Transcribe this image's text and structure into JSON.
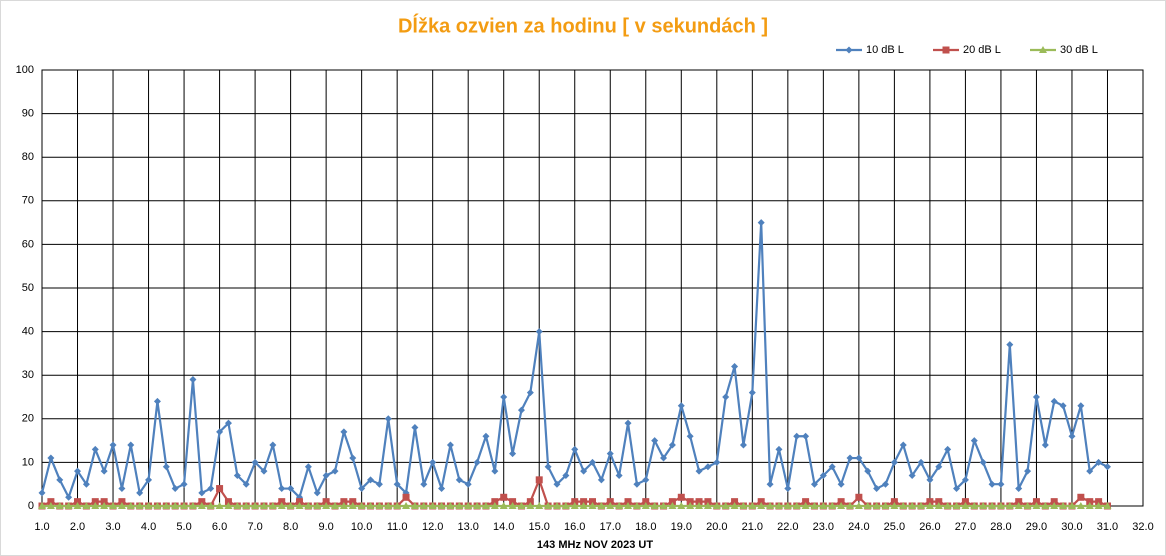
{
  "chart_data": {
    "type": "line",
    "title": "Dĺžka ozvien za hodinu [ v sekundách ]",
    "x_label": "143 MHz  NOV  2023  UT",
    "xlim": [
      1,
      32
    ],
    "ylim": [
      0,
      100
    ],
    "yticks": [
      0,
      10,
      20,
      30,
      40,
      50,
      60,
      70,
      80,
      90,
      100
    ],
    "xticks": [
      {
        "value": 1,
        "label": "1.0"
      },
      {
        "value": 2,
        "label": "2.0"
      },
      {
        "value": 3,
        "label": "3.0"
      },
      {
        "value": 4,
        "label": "4.0"
      },
      {
        "value": 5,
        "label": "5.0"
      },
      {
        "value": 6,
        "label": "6.0"
      },
      {
        "value": 7,
        "label": "7.0"
      },
      {
        "value": 8,
        "label": "8.0"
      },
      {
        "value": 9,
        "label": "9.0"
      },
      {
        "value": 10,
        "label": "10.0"
      },
      {
        "value": 11,
        "label": "11.0"
      },
      {
        "value": 12,
        "label": "12.0"
      },
      {
        "value": 13,
        "label": "13.0"
      },
      {
        "value": 14,
        "label": "14.0"
      },
      {
        "value": 15,
        "label": "15.0"
      },
      {
        "value": 16,
        "label": "16.0"
      },
      {
        "value": 17,
        "label": "17.0"
      },
      {
        "value": 18,
        "label": "18.0"
      },
      {
        "value": 19,
        "label": "19.0"
      },
      {
        "value": 20,
        "label": "20.0"
      },
      {
        "value": 21,
        "label": "21.0"
      },
      {
        "value": 22,
        "label": "22.0"
      },
      {
        "value": 23,
        "label": "23.0"
      },
      {
        "value": 24,
        "label": "24.0"
      },
      {
        "value": 25,
        "label": "25.0"
      },
      {
        "value": 26,
        "label": "26.0"
      },
      {
        "value": 27,
        "label": "27.0"
      },
      {
        "value": 28,
        "label": "28.0"
      },
      {
        "value": 29,
        "label": "29.0"
      },
      {
        "value": 30,
        "label": "30.0"
      },
      {
        "value": 31,
        "label": "31.0"
      },
      {
        "value": 32,
        "label": "32.0"
      }
    ],
    "grid": true,
    "legend": "top-right",
    "x": [
      1,
      1.25,
      1.5,
      1.75,
      2,
      2.25,
      2.5,
      2.75,
      3,
      3.25,
      3.5,
      3.75,
      4,
      4.25,
      4.5,
      4.75,
      5,
      5.25,
      5.5,
      5.75,
      6,
      6.25,
      6.5,
      6.75,
      7,
      7.25,
      7.5,
      7.75,
      8,
      8.25,
      8.5,
      8.75,
      9,
      9.25,
      9.5,
      9.75,
      10,
      10.25,
      10.5,
      10.75,
      11,
      11.25,
      11.5,
      11.75,
      12,
      12.25,
      12.5,
      12.75,
      13,
      13.25,
      13.5,
      13.75,
      14,
      14.25,
      14.5,
      14.75,
      15,
      15.25,
      15.5,
      15.75,
      16,
      16.25,
      16.5,
      16.75,
      17,
      17.25,
      17.5,
      17.75,
      18,
      18.25,
      18.5,
      18.75,
      19,
      19.25,
      19.5,
      19.75,
      20,
      20.25,
      20.5,
      20.75,
      21,
      21.25,
      21.5,
      21.75,
      22,
      22.25,
      22.5,
      22.75,
      23,
      23.25,
      23.5,
      23.75,
      24,
      24.25,
      24.5,
      24.75,
      25,
      25.25,
      25.5,
      25.75,
      26,
      26.25,
      26.5,
      26.75,
      27,
      27.25,
      27.5,
      27.75,
      28,
      28.25,
      28.5,
      28.75,
      29,
      29.25,
      29.5,
      29.75,
      30,
      30.25,
      30.5,
      30.75,
      31
    ],
    "series": [
      {
        "name": "10 dB L",
        "color": "#4f81bd",
        "marker": "diamond",
        "values": [
          3,
          11,
          6,
          2,
          8,
          5,
          13,
          8,
          14,
          4,
          14,
          3,
          6,
          24,
          9,
          4,
          5,
          29,
          3,
          4,
          17,
          19,
          7,
          5,
          10,
          8,
          14,
          4,
          4,
          2,
          9,
          3,
          7,
          8,
          17,
          11,
          4,
          6,
          5,
          20,
          5,
          3,
          18,
          5,
          10,
          4,
          14,
          6,
          5,
          10,
          16,
          8,
          25,
          12,
          22,
          26,
          40,
          9,
          5,
          7,
          13,
          8,
          10,
          6,
          12,
          7,
          19,
          5,
          6,
          15,
          11,
          14,
          23,
          16,
          8,
          9,
          10,
          25,
          32,
          14,
          26,
          65,
          5,
          13,
          4,
          16,
          16,
          5,
          7,
          9,
          5,
          11,
          11,
          8,
          4,
          5,
          10,
          14,
          7,
          10,
          6,
          9,
          13,
          4,
          6,
          15,
          10,
          5,
          5,
          37,
          4,
          8,
          25,
          14,
          24,
          23,
          16,
          23,
          8,
          10,
          9
        ]
      },
      {
        "name": "20 dB L",
        "color": "#c0504d",
        "marker": "square",
        "values": [
          0,
          1,
          0,
          0,
          1,
          0,
          1,
          1,
          0,
          1,
          0,
          0,
          0,
          0,
          0,
          0,
          0,
          0,
          1,
          0,
          4,
          1,
          0,
          0,
          0,
          0,
          0,
          1,
          0,
          1,
          0,
          0,
          1,
          0,
          1,
          1,
          0,
          0,
          0,
          0,
          0,
          2,
          0,
          0,
          0,
          0,
          0,
          0,
          0,
          0,
          0,
          1,
          2,
          1,
          0,
          1,
          6,
          0,
          0,
          0,
          1,
          1,
          1,
          0,
          1,
          0,
          1,
          0,
          1,
          0,
          0,
          1,
          2,
          1,
          1,
          1,
          0,
          0,
          1,
          0,
          0,
          1,
          0,
          0,
          0,
          0,
          1,
          0,
          0,
          0,
          1,
          0,
          2,
          0,
          0,
          0,
          1,
          0,
          0,
          0,
          1,
          1,
          0,
          0,
          1,
          0,
          0,
          0,
          0,
          0,
          1,
          0,
          1,
          0,
          1,
          0,
          0,
          2,
          1,
          1,
          0
        ]
      },
      {
        "name": "30 dB L",
        "color": "#9bbb59",
        "marker": "triangle",
        "values": [
          0,
          0,
          0,
          0,
          0,
          0,
          0,
          0,
          0,
          0,
          0,
          0,
          0,
          0,
          0,
          0,
          0,
          0,
          0,
          0,
          0,
          0,
          0,
          0,
          0,
          0,
          0,
          0,
          0,
          0,
          0,
          0,
          0,
          0,
          0,
          0,
          0,
          0,
          0,
          0,
          0,
          0,
          0,
          0,
          0,
          0,
          0,
          0,
          0,
          0,
          0,
          0,
          0,
          0,
          0,
          0,
          0,
          0,
          0,
          0,
          0,
          0,
          0,
          0,
          0,
          0,
          0,
          0,
          0,
          0,
          0,
          0,
          0,
          0,
          0,
          0,
          0,
          0,
          0,
          0,
          0,
          0,
          0,
          0,
          0,
          0,
          0,
          0,
          0,
          0,
          0,
          0,
          0,
          0,
          0,
          0,
          0,
          0,
          0,
          0,
          0,
          0,
          0,
          0,
          0,
          0,
          0,
          0,
          0,
          0,
          0,
          0,
          0,
          0,
          0,
          0,
          0,
          0,
          0,
          0,
          0
        ]
      }
    ]
  }
}
